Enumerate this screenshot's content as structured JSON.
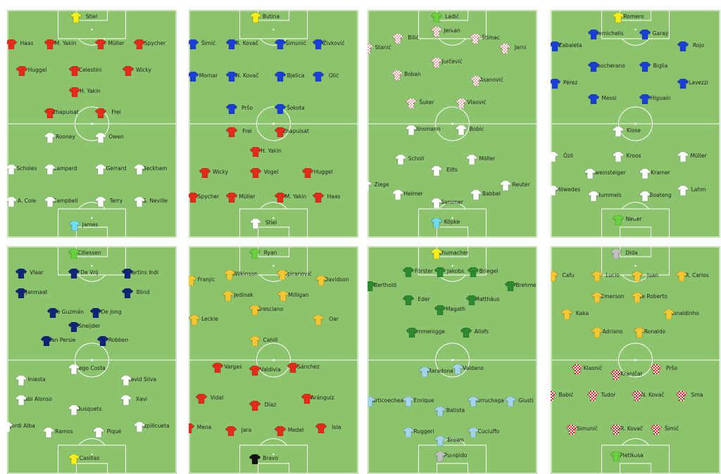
{
  "colors": {
    "grass": "#8cc46e",
    "lines": "#ffffff",
    "red": "#e82a1a",
    "white": "#ffffff",
    "blue": "#1a3fd8",
    "navy": "#10257a",
    "checker": "#f2a5a5",
    "gold": "#f5c832",
    "green": "#2e8a2e",
    "sky": "#a4d4ec",
    "goalkeeper_yellow": "#f7ee1a",
    "goalkeeper_green": "#6ad23c",
    "goalkeeper_cyan": "#6fdcf0",
    "goalkeeper_grey": "#c0c0c0",
    "goalkeeper_black": "#111111",
    "croatia_check": "#e8202a"
  },
  "pitches": [
    {
      "top_team": {
        "kit": "red",
        "players": [
          {
            "name": "Stiel",
            "kit": "goalkeeper_yellow"
          },
          {
            "name": "Haas"
          },
          {
            "name": "M. Yakin"
          },
          {
            "name": "Müller"
          },
          {
            "name": "Spycher"
          },
          {
            "name": "Huggel"
          },
          {
            "name": "Celestini"
          },
          {
            "name": "Wicky"
          },
          {
            "name": "H. Yakin"
          },
          {
            "name": "Chapuisat"
          },
          {
            "name": "Frei"
          }
        ]
      },
      "bottom_team": {
        "kit": "white",
        "players": [
          {
            "name": "Rooney"
          },
          {
            "name": "Owen"
          },
          {
            "name": "Scholes"
          },
          {
            "name": "Lampard"
          },
          {
            "name": "Gerrard"
          },
          {
            "name": "Beckham"
          },
          {
            "name": "A. Cole"
          },
          {
            "name": "Campbell"
          },
          {
            "name": "Terry"
          },
          {
            "name": "G. Neville"
          },
          {
            "name": "James",
            "kit": "goalkeeper_cyan"
          }
        ]
      }
    },
    {
      "top_team": {
        "kit": "blue",
        "players": [
          {
            "name": "Butina",
            "kit": "goalkeeper_yellow"
          },
          {
            "name": "Šimić"
          },
          {
            "name": "R. Kovač"
          },
          {
            "name": "Šimunić"
          },
          {
            "name": "Živković"
          },
          {
            "name": "Mornar"
          },
          {
            "name": "N. Kovač"
          },
          {
            "name": "Bjelica"
          },
          {
            "name": "Olić"
          },
          {
            "name": "Pršo"
          },
          {
            "name": "Šokota"
          }
        ]
      },
      "bottom_team": {
        "kit": "red",
        "players": [
          {
            "name": "Frei"
          },
          {
            "name": "Chapuisat"
          },
          {
            "name": "H. Yakin"
          },
          {
            "name": "Wicky"
          },
          {
            "name": "Vogel"
          },
          {
            "name": "Huggel"
          },
          {
            "name": "Spycher"
          },
          {
            "name": "Müller"
          },
          {
            "name": "M. Yakin"
          },
          {
            "name": "Haas"
          },
          {
            "name": "Stiel",
            "kit": "white"
          }
        ]
      }
    },
    {
      "top_team": {
        "kit": "checker",
        "players": [
          {
            "name": "Ladić",
            "kit": "goalkeeper_green"
          },
          {
            "name": "Jerkan"
          },
          {
            "name": "Bilić"
          },
          {
            "name": "Štimac"
          },
          {
            "name": "Stanić"
          },
          {
            "name": "Jarni"
          },
          {
            "name": "Jurčević"
          },
          {
            "name": "Boban"
          },
          {
            "name": "Asanović"
          },
          {
            "name": "Šuker"
          },
          {
            "name": "Vlaović"
          }
        ]
      },
      "bottom_team": {
        "kit": "white",
        "players": [
          {
            "name": "Klinsmann"
          },
          {
            "name": "Bobic"
          },
          {
            "name": "Scholl"
          },
          {
            "name": "Möller"
          },
          {
            "name": "Eilts"
          },
          {
            "name": "Ziege"
          },
          {
            "name": "Reuter"
          },
          {
            "name": "Helmer"
          },
          {
            "name": "Babbel"
          },
          {
            "name": "Sammer"
          },
          {
            "name": "Köpke",
            "kit": "goalkeeper_cyan"
          }
        ]
      }
    },
    {
      "top_team": {
        "kit": "blue",
        "players": [
          {
            "name": "Romero",
            "kit": "goalkeeper_yellow"
          },
          {
            "name": "Demichelis"
          },
          {
            "name": "Garay"
          },
          {
            "name": "Zabaleta"
          },
          {
            "name": "Rojo"
          },
          {
            "name": "Mascherano"
          },
          {
            "name": "Biglia"
          },
          {
            "name": "Pérez"
          },
          {
            "name": "Lavezzi"
          },
          {
            "name": "Messi"
          },
          {
            "name": "Higuaín"
          }
        ]
      },
      "bottom_team": {
        "kit": "white",
        "players": [
          {
            "name": "Klose"
          },
          {
            "name": "Özil"
          },
          {
            "name": "Kroos"
          },
          {
            "name": "Müller"
          },
          {
            "name": "Schweinsteiger"
          },
          {
            "name": "Kramer"
          },
          {
            "name": "Höwedes"
          },
          {
            "name": "Hummels"
          },
          {
            "name": "Boateng"
          },
          {
            "name": "Lahm"
          },
          {
            "name": "Neuer",
            "kit": "goalkeeper_green"
          }
        ]
      }
    },
    {
      "top_team": {
        "kit": "navy",
        "players": [
          {
            "name": "Cillessen",
            "kit": "goalkeeper_green"
          },
          {
            "name": "Vlaar"
          },
          {
            "name": "De Vrij"
          },
          {
            "name": "Martins Indi"
          },
          {
            "name": "Janmaat"
          },
          {
            "name": "Blind"
          },
          {
            "name": "De Guzmán"
          },
          {
            "name": "De Jong"
          },
          {
            "name": "Sneijder"
          },
          {
            "name": "Van Persie"
          },
          {
            "name": "Robben"
          }
        ]
      },
      "bottom_team": {
        "kit": "white",
        "players": [
          {
            "name": "Diego Costa"
          },
          {
            "name": "Iniesta"
          },
          {
            "name": "David Silva"
          },
          {
            "name": "Xabi Alonso"
          },
          {
            "name": "Xavi"
          },
          {
            "name": "Busquets"
          },
          {
            "name": "Jordi Alba"
          },
          {
            "name": "Ramos"
          },
          {
            "name": "Piqué"
          },
          {
            "name": "Azpilicueta"
          },
          {
            "name": "Casillas",
            "kit": "goalkeeper_yellow"
          }
        ]
      }
    },
    {
      "top_team": {
        "kit": "gold",
        "players": [
          {
            "name": "Ryan",
            "kit": "goalkeeper_green"
          },
          {
            "name": "Franjic"
          },
          {
            "name": "Wilkinson"
          },
          {
            "name": "Špiranović"
          },
          {
            "name": "Davidson"
          },
          {
            "name": "Jedinak"
          },
          {
            "name": "Milligan"
          },
          {
            "name": "Leckie"
          },
          {
            "name": "Bresciano"
          },
          {
            "name": "Oar"
          },
          {
            "name": "Cahill"
          }
        ]
      },
      "bottom_team": {
        "kit": "red",
        "players": [
          {
            "name": "Vargas"
          },
          {
            "name": "Valdivia"
          },
          {
            "name": "Sánchez"
          },
          {
            "name": "Vidal"
          },
          {
            "name": "Díaz"
          },
          {
            "name": "Aránguiz"
          },
          {
            "name": "Mena"
          },
          {
            "name": "Jara"
          },
          {
            "name": "Medel"
          },
          {
            "name": "Isla"
          },
          {
            "name": "Bravo",
            "kit": "goalkeeper_black"
          }
        ]
      }
    },
    {
      "top_team": {
        "kit": "green",
        "players": [
          {
            "name": "Schumacher",
            "kit": "goalkeeper_yellow"
          },
          {
            "name": "Förster"
          },
          {
            "name": "Jakobs"
          },
          {
            "name": "Briegel"
          },
          {
            "name": "Berthold"
          },
          {
            "name": "Brehme"
          },
          {
            "name": "Eder"
          },
          {
            "name": "Matthäus"
          },
          {
            "name": "Magath"
          },
          {
            "name": "Rummenigge"
          },
          {
            "name": "Allofs"
          }
        ]
      },
      "bottom_team": {
        "kit": "sky",
        "players": [
          {
            "name": "Maradona"
          },
          {
            "name": "Valdano"
          },
          {
            "name": "Olarticoechea"
          },
          {
            "name": "Enrique"
          },
          {
            "name": "Burruchaga"
          },
          {
            "name": "Giusti"
          },
          {
            "name": "Batista"
          },
          {
            "name": "Ruggeri"
          },
          {
            "name": "Brown"
          },
          {
            "name": "Cuciuffo"
          },
          {
            "name": "Pumpido",
            "kit": "goalkeeper_grey"
          }
        ]
      }
    },
    {
      "top_team": {
        "kit": "gold",
        "players": [
          {
            "name": "Dida",
            "kit": "goalkeeper_grey"
          },
          {
            "name": "Cafu"
          },
          {
            "name": "Lucio"
          },
          {
            "name": "Juan"
          },
          {
            "name": "R. Carlos"
          },
          {
            "name": "Emerson"
          },
          {
            "name": "Ze Roberto"
          },
          {
            "name": "Kaka"
          },
          {
            "name": "Ronaldinho"
          },
          {
            "name": "Adriano"
          },
          {
            "name": "Ronaldo"
          }
        ]
      },
      "bottom_team": {
        "kit": "croatia_check",
        "players": [
          {
            "name": "Klasnić"
          },
          {
            "name": "Kranjčar"
          },
          {
            "name": "Pršo"
          },
          {
            "name": "Babić"
          },
          {
            "name": "Tudor"
          },
          {
            "name": "N. Kovač"
          },
          {
            "name": "Srna"
          },
          {
            "name": "Simunić"
          },
          {
            "name": "R. Kovač"
          },
          {
            "name": "Šimić"
          },
          {
            "name": "Pletikosa",
            "kit": "goalkeeper_green"
          }
        ]
      }
    }
  ]
}
